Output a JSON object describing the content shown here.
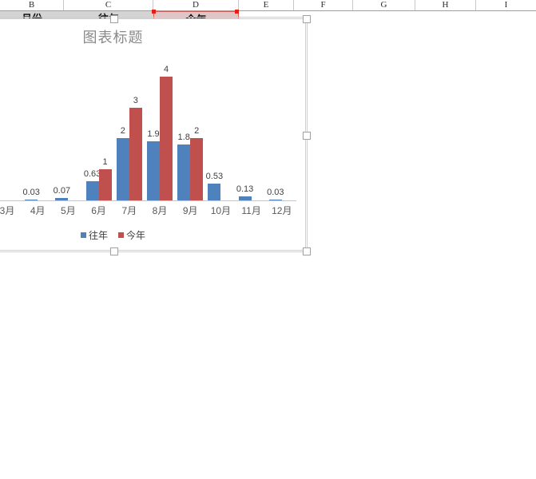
{
  "spreadsheet": {
    "column_headers": [
      "B",
      "C",
      "D",
      "E",
      "F",
      "G",
      "H",
      "I"
    ],
    "data_row": {
      "month_header": "月份",
      "last_year_header": "往年",
      "this_year_header": "今年"
    }
  },
  "chart": {
    "title": "图表标题",
    "legend": [
      {
        "label": "往年",
        "color": "#4F81BD"
      },
      {
        "label": "今年",
        "color": "#C0504D"
      }
    ]
  },
  "chart_data": {
    "type": "bar",
    "title": "图表标题",
    "categories": [
      "3月",
      "4月",
      "5月",
      "6月",
      "7月",
      "8月",
      "9月",
      "10月",
      "11月",
      "12月"
    ],
    "series": [
      {
        "name": "往年",
        "color": "#4F81BD",
        "values": [
          null,
          0.03,
          0.07,
          0.63,
          2,
          1.9,
          1.8,
          0.53,
          0.13,
          0.03
        ],
        "labels": [
          "",
          "0.03",
          "0.07",
          "0.63",
          "2",
          "1.9",
          "1.8",
          "0.53",
          "0.13",
          "0.03"
        ]
      },
      {
        "name": "今年",
        "color": "#C0504D",
        "values": [
          null,
          null,
          null,
          1,
          3,
          4,
          2,
          null,
          null,
          null
        ],
        "labels": [
          "",
          "",
          "",
          "1",
          "3",
          "4",
          "2",
          "",
          "",
          ""
        ]
      }
    ],
    "xlabel": "",
    "ylabel": "",
    "data_labels": true,
    "gridlines": false,
    "legend_position": "bottom",
    "axis_color": "#c6c6c6"
  }
}
